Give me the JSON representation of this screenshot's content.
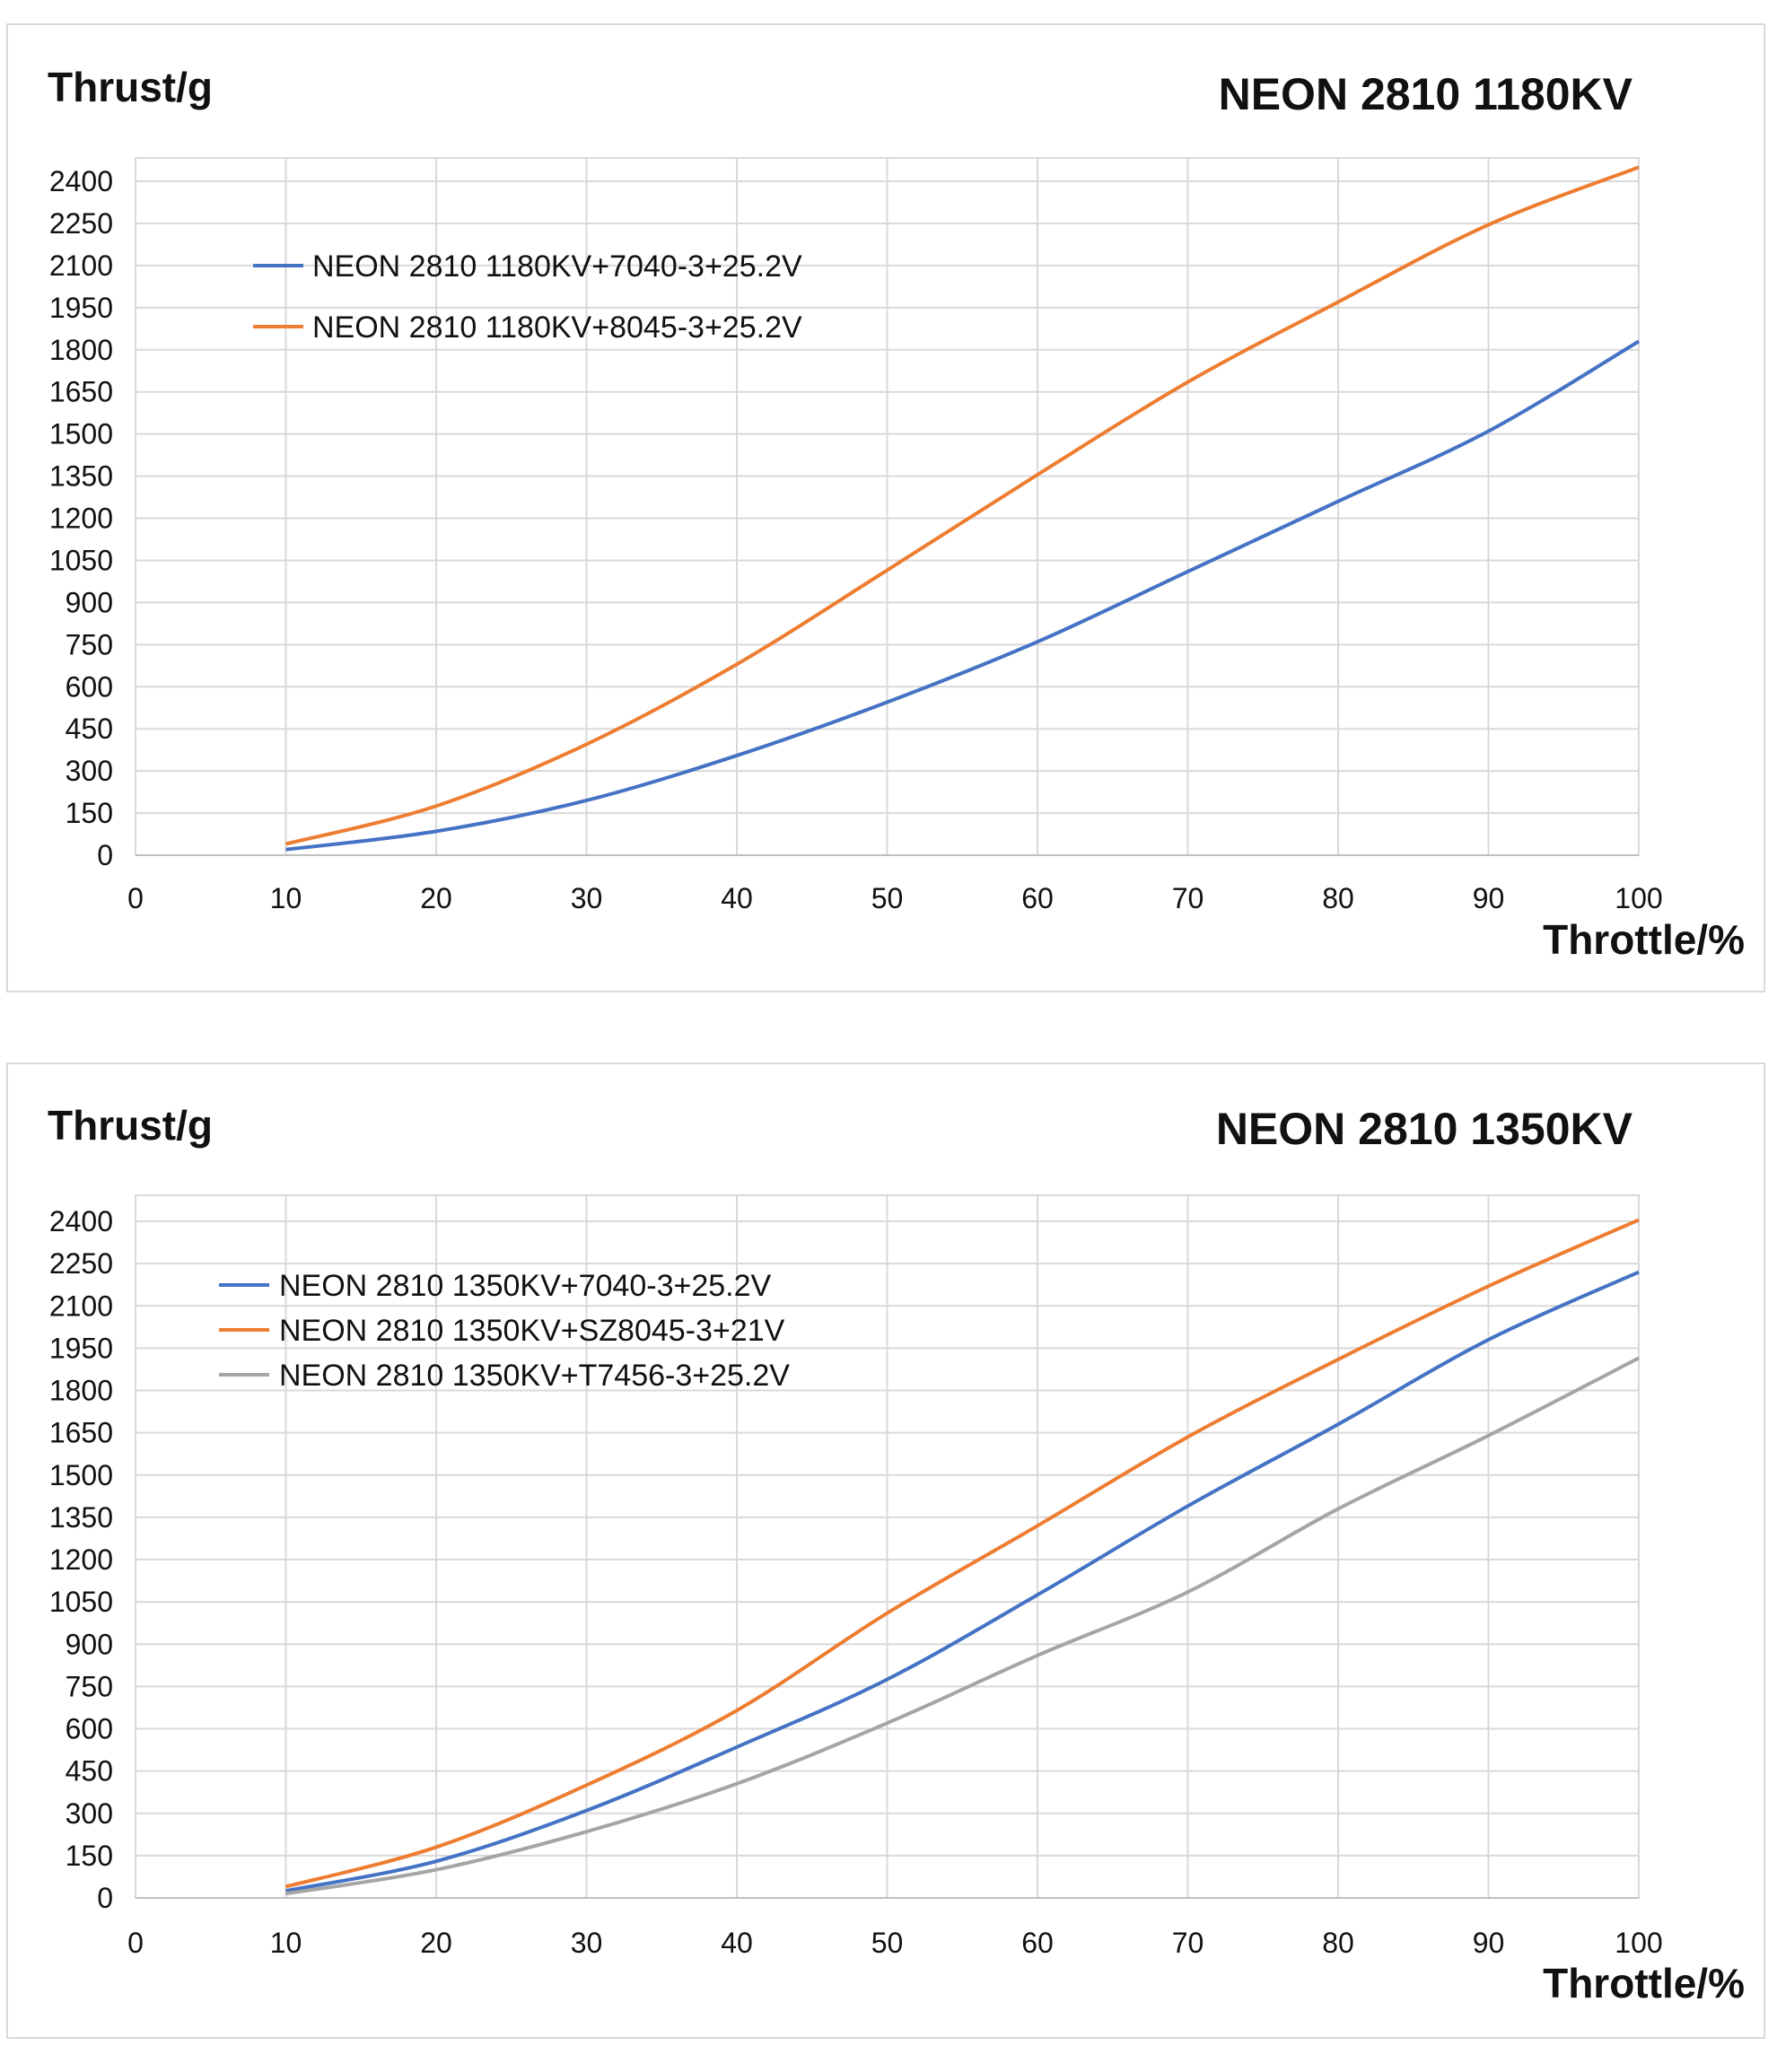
{
  "colors": {
    "blue": "#4472C4",
    "orange": "#ED7D31",
    "gray": "#A5A5A5",
    "grid": "#d9d9d9"
  },
  "chart_data": [
    {
      "type": "line",
      "title": "NEON 2810 1180KV",
      "ylabel": "Thrust/g",
      "xlabel": "Throttle/%",
      "xlim": [
        0,
        100
      ],
      "ylim": [
        0,
        2400
      ],
      "x_ticks": [
        "0",
        "10",
        "20",
        "30",
        "40",
        "50",
        "60",
        "70",
        "80",
        "90",
        "100"
      ],
      "y_ticks": [
        "0",
        "150",
        "300",
        "450",
        "600",
        "750",
        "900",
        "1050",
        "1200",
        "1350",
        "1500",
        "1650",
        "1800",
        "1950",
        "2100",
        "2250",
        "2400"
      ],
      "grid": true,
      "legend": "top-left",
      "x": [
        10,
        20,
        30,
        40,
        50,
        60,
        70,
        80,
        90,
        100
      ],
      "series": [
        {
          "name": "NEON 2810 1180KV+7040-3+25.2V",
          "color": "#4472C4",
          "values": [
            20,
            85,
            195,
            355,
            545,
            760,
            1010,
            1260,
            1510,
            1830
          ]
        },
        {
          "name": "NEON 2810 1180KV+8045-3+25.2V",
          "color": "#ED7D31",
          "values": [
            40,
            175,
            395,
            680,
            1015,
            1355,
            1685,
            1970,
            2245,
            2450
          ]
        }
      ]
    },
    {
      "type": "line",
      "title": "NEON 2810 1350KV",
      "ylabel": "Thrust/g",
      "xlabel": "Throttle/%",
      "xlim": [
        0,
        100
      ],
      "ylim": [
        0,
        2400
      ],
      "x_ticks": [
        "0",
        "10",
        "20",
        "30",
        "40",
        "50",
        "60",
        "70",
        "80",
        "90",
        "100"
      ],
      "y_ticks": [
        "0",
        "150",
        "300",
        "450",
        "600",
        "750",
        "900",
        "1050",
        "1200",
        "1350",
        "1500",
        "1650",
        "1800",
        "1950",
        "2100",
        "2250",
        "2400"
      ],
      "grid": true,
      "legend": "top-left",
      "x": [
        10,
        20,
        30,
        40,
        50,
        60,
        70,
        80,
        90,
        100
      ],
      "series": [
        {
          "name": "NEON 2810 1350KV+7040-3+25.2V",
          "color": "#4472C4",
          "values": [
            25,
            130,
            310,
            535,
            775,
            1075,
            1390,
            1680,
            1980,
            2220
          ]
        },
        {
          "name": "NEON 2810 1350KV+SZ8045-3+21V",
          "color": "#ED7D31",
          "values": [
            40,
            180,
            400,
            665,
            1010,
            1320,
            1635,
            1910,
            2170,
            2405
          ]
        },
        {
          "name": "NEON 2810 1350KV+T7456-3+25.2V",
          "color": "#A5A5A5",
          "values": [
            15,
            100,
            235,
            405,
            620,
            860,
            1085,
            1380,
            1640,
            1915
          ]
        }
      ]
    }
  ]
}
